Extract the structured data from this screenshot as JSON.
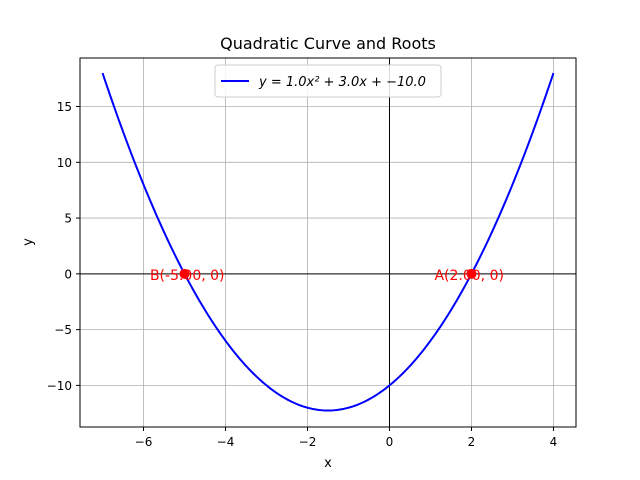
{
  "chart_data": {
    "type": "line",
    "title": "Quadratic Curve and Roots",
    "xlabel": "x",
    "ylabel": "y",
    "xlim": [
      -7.55,
      4.55
    ],
    "ylim": [
      -13.73,
      19.35
    ],
    "xticks": [
      -6,
      -4,
      -2,
      0,
      2,
      4
    ],
    "xtick_labels": [
      "−6",
      "−4",
      "−2",
      "0",
      "2",
      "4"
    ],
    "yticks": [
      -10,
      -5,
      0,
      5,
      10,
      15
    ],
    "ytick_labels": [
      "−10",
      "−5",
      "0",
      "5",
      "10",
      "15"
    ],
    "grid": true,
    "legend_position": "upper center",
    "series": [
      {
        "name": "y = 1.0x² + 3.0x + −10.0",
        "color": "#0000ff",
        "coefficients": {
          "a": 1.0,
          "b": 3.0,
          "c": -10.0
        },
        "x_range": [
          -7,
          4
        ]
      }
    ],
    "points": [
      {
        "label": "A(2.00, 0)",
        "x": 2.0,
        "y": 0,
        "color": "#ff0000",
        "anchor": "start"
      },
      {
        "label": "B(-5.00, 0)",
        "x": -5.0,
        "y": 0,
        "color": "#ff0000",
        "anchor": "end"
      }
    ]
  }
}
